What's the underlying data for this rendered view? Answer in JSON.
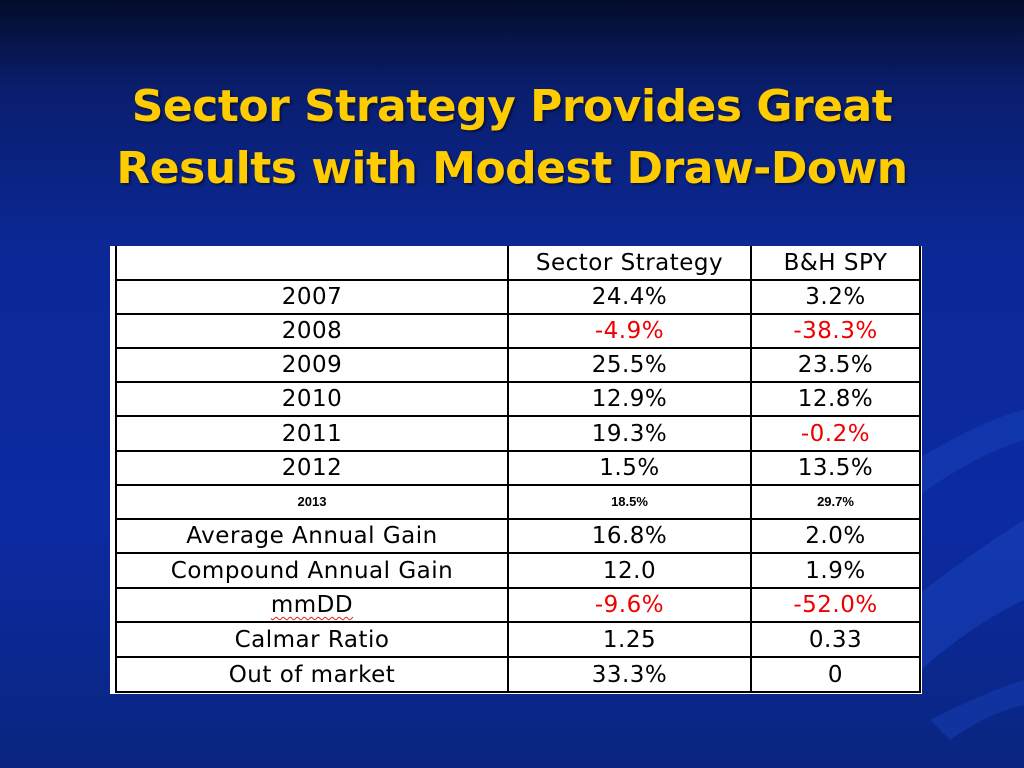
{
  "slide": {
    "title": "Sector Strategy Provides Great Results with Modest Draw-Down"
  },
  "table": {
    "columns": [
      "",
      "Sector Strategy",
      "B&H SPY"
    ],
    "rows": [
      {
        "label": "2007",
        "sector": "24.4%",
        "spy": "3.2%"
      },
      {
        "label": "2008",
        "sector": "-4.9%",
        "spy": "-38.3%"
      },
      {
        "label": "2009",
        "sector": "25.5%",
        "spy": "23.5%"
      },
      {
        "label": "2010",
        "sector": "12.9%",
        "spy": "12.8%"
      },
      {
        "label": "2011",
        "sector": "19.3%",
        "spy": "-0.2%"
      },
      {
        "label": "2012",
        "sector": "1.5%",
        "spy": "13.5%"
      },
      {
        "label": "2013",
        "sector": "18.5%",
        "spy": "29.7%"
      },
      {
        "label": "Average Annual Gain",
        "sector": "16.8%",
        "spy": "2.0%"
      },
      {
        "label": "Compound Annual Gain",
        "sector": "12.0",
        "spy": "1.9%"
      },
      {
        "label": "mmDD",
        "sector": "-9.6%",
        "spy": "-52.0%"
      },
      {
        "label": "Calmar Ratio",
        "sector": "1.25",
        "spy": "0.33"
      },
      {
        "label": "Out of market",
        "sector": "33.3%",
        "spy": "0"
      }
    ]
  },
  "colors": {
    "title": "#ffcc00",
    "negative": "#ee0000",
    "background": "#0b2896"
  }
}
